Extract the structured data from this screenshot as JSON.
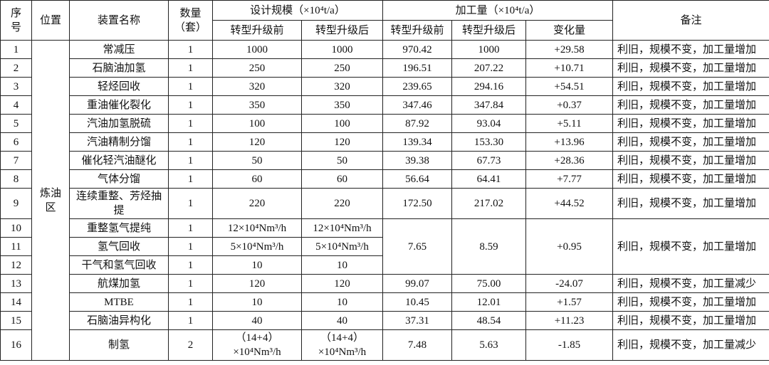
{
  "header": {
    "seq": "序号",
    "location": "位置",
    "name": "装置名称",
    "qty": "数量（套）",
    "design": "设计规模（×10⁴t/a）",
    "design_before": "转型升级前",
    "design_after": "转型升级后",
    "processing": "加工量（×10⁴t/a）",
    "proc_before": "转型升级前",
    "proc_after": "转型升级后",
    "change": "变化量",
    "note": "备注"
  },
  "location": "炼油区",
  "rows": [
    {
      "seq": "1",
      "name": "常减压",
      "qty": "1",
      "design_before": "1000",
      "design_after": "1000",
      "proc_before": "970.42",
      "proc_after": "1000",
      "change": "+29.58",
      "note": "利旧，规模不变，加工量增加"
    },
    {
      "seq": "2",
      "name": "石脑油加氢",
      "qty": "1",
      "design_before": "250",
      "design_after": "250",
      "proc_before": "196.51",
      "proc_after": "207.22",
      "change": "+10.71",
      "note": "利旧，规模不变，加工量增加"
    },
    {
      "seq": "3",
      "name": "轻烃回收",
      "qty": "1",
      "design_before": "320",
      "design_after": "320",
      "proc_before": "239.65",
      "proc_after": "294.16",
      "change": "+54.51",
      "note": "利旧，规模不变，加工量增加"
    },
    {
      "seq": "4",
      "name": "重油催化裂化",
      "qty": "1",
      "design_before": "350",
      "design_after": "350",
      "proc_before": "347.46",
      "proc_after": "347.84",
      "change": "+0.37",
      "note": "利旧，规模不变，加工量增加"
    },
    {
      "seq": "5",
      "name": "汽油加氢脱硫",
      "qty": "1",
      "design_before": "100",
      "design_after": "100",
      "proc_before": "87.92",
      "proc_after": "93.04",
      "change": "+5.11",
      "note": "利旧，规模不变，加工量增加"
    },
    {
      "seq": "6",
      "name": "汽油精制分馏",
      "qty": "1",
      "design_before": "120",
      "design_after": "120",
      "proc_before": "139.34",
      "proc_after": "153.30",
      "change": "+13.96",
      "note": "利旧，规模不变，加工量增加"
    },
    {
      "seq": "7",
      "name": "催化轻汽油醚化",
      "qty": "1",
      "design_before": "50",
      "design_after": "50",
      "proc_before": "39.38",
      "proc_after": "67.73",
      "change": "+28.36",
      "note": "利旧，规模不变，加工量增加"
    },
    {
      "seq": "8",
      "name": "气体分馏",
      "qty": "1",
      "design_before": "60",
      "design_after": "60",
      "proc_before": "56.64",
      "proc_after": "64.41",
      "change": "+7.77",
      "note": "利旧，规模不变，加工量增加"
    },
    {
      "seq": "9",
      "name": "连续重整、芳烃抽提",
      "qty": "1",
      "design_before": "220",
      "design_after": "220",
      "proc_before": "172.50",
      "proc_after": "217.02",
      "change": "+44.52",
      "note": "利旧，规模不变，加工量增加"
    },
    {
      "seq": "10",
      "name": "重整氢气提纯",
      "qty": "1",
      "design_before": "12×10⁴Nm³/h",
      "design_after": "12×10⁴Nm³/h",
      "proc_before": "7.65",
      "proc_after": "8.59",
      "change": "+0.95",
      "note": "利旧，规模不变，加工量增加"
    },
    {
      "seq": "11",
      "name": "氢气回收",
      "qty": "1",
      "design_before": "5×10⁴Nm³/h",
      "design_after": "5×10⁴Nm³/h"
    },
    {
      "seq": "12",
      "name": "干气和氢气回收",
      "qty": "1",
      "design_before": "10",
      "design_after": "10"
    },
    {
      "seq": "13",
      "name": "航煤加氢",
      "qty": "1",
      "design_before": "120",
      "design_after": "120",
      "proc_before": "99.07",
      "proc_after": "75.00",
      "change": "-24.07",
      "note": "利旧，规模不变，加工量减少"
    },
    {
      "seq": "14",
      "name": "MTBE",
      "qty": "1",
      "design_before": "10",
      "design_after": "10",
      "proc_before": "10.45",
      "proc_after": "12.01",
      "change": "+1.57",
      "note": "利旧，规模不变，加工量增加"
    },
    {
      "seq": "15",
      "name": "石脑油异构化",
      "qty": "1",
      "design_before": "40",
      "design_after": "40",
      "proc_before": "37.31",
      "proc_after": "48.54",
      "change": "+11.23",
      "note": "利旧，规模不变，加工量增加"
    },
    {
      "seq": "16",
      "name": "制氢",
      "qty": "2",
      "design_before": "（14+4）×10⁴Nm³/h",
      "design_after": "（14+4）×10⁴Nm³/h",
      "proc_before": "7.48",
      "proc_after": "5.63",
      "change": "-1.85",
      "note": "利旧，规模不变，加工量减少"
    }
  ]
}
